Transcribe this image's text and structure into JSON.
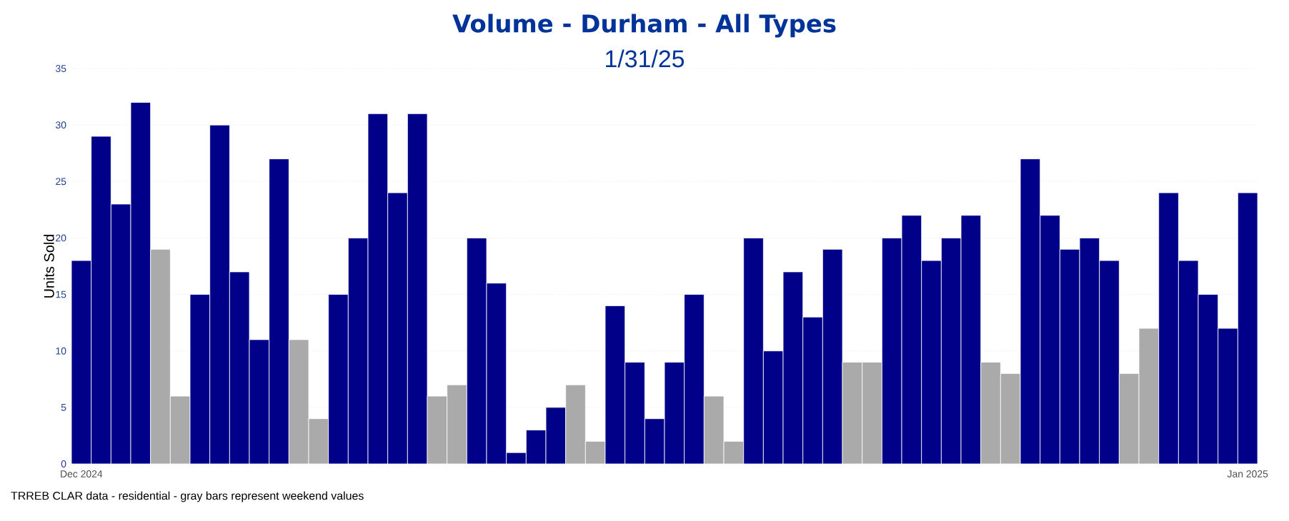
{
  "chart_data": {
    "type": "bar",
    "title": "Volume - Durham - All Types",
    "subtitle": "1/31/25",
    "ylabel": "Units Sold",
    "annotations": [
      "TRREB CLAR data - residential - gray bars represent weekend values"
    ],
    "categories": [
      "Dec 2024",
      null,
      null,
      null,
      null,
      null,
      null,
      null,
      null,
      null,
      null,
      null,
      null,
      null,
      null,
      null,
      null,
      null,
      null,
      null,
      null,
      null,
      null,
      null,
      null,
      null,
      null,
      null,
      null,
      null,
      null,
      null,
      null,
      null,
      null,
      null,
      null,
      null,
      null,
      null,
      null,
      null,
      null,
      null,
      null,
      null,
      null,
      null,
      null,
      null,
      null,
      null,
      null,
      null,
      null,
      null,
      null,
      null,
      null,
      "Jan 2025"
    ],
    "values": [
      18,
      29,
      23,
      32,
      19,
      6,
      15,
      30,
      17,
      11,
      27,
      11,
      4,
      15,
      20,
      31,
      24,
      31,
      6,
      7,
      20,
      16,
      1,
      3,
      5,
      7,
      2,
      14,
      9,
      4,
      9,
      15,
      6,
      2,
      20,
      10,
      17,
      13,
      19,
      9,
      9,
      20,
      22,
      18,
      20,
      22,
      9,
      8,
      27,
      22,
      19,
      20,
      18,
      8,
      12,
      24,
      18,
      15,
      12,
      24
    ],
    "colors": [
      "#000088",
      "#000088",
      "#000088",
      "#000088",
      "#aaaaaa",
      "#aaaaaa",
      "#000088",
      "#000088",
      "#000088",
      "#000088",
      "#000088",
      "#aaaaaa",
      "#aaaaaa",
      "#000088",
      "#000088",
      "#000088",
      "#000088",
      "#000088",
      "#aaaaaa",
      "#aaaaaa",
      "#000088",
      "#000088",
      "#000088",
      "#000088",
      "#000088",
      "#aaaaaa",
      "#aaaaaa",
      "#000088",
      "#000088",
      "#000088",
      "#000088",
      "#000088",
      "#aaaaaa",
      "#aaaaaa",
      "#000088",
      "#000088",
      "#000088",
      "#000088",
      "#000088",
      "#aaaaaa",
      "#aaaaaa",
      "#000088",
      "#000088",
      "#000088",
      "#000088",
      "#000088",
      "#aaaaaa",
      "#aaaaaa",
      "#000088",
      "#000088",
      "#000088",
      "#000088",
      "#000088",
      "#aaaaaa",
      "#aaaaaa",
      "#000088",
      "#000088",
      "#000088",
      "#000088",
      "#000088"
    ],
    "ylim": [
      0,
      35
    ],
    "yticks": [
      0,
      5,
      10,
      15,
      20,
      25,
      30,
      35
    ],
    "grid": "y"
  }
}
